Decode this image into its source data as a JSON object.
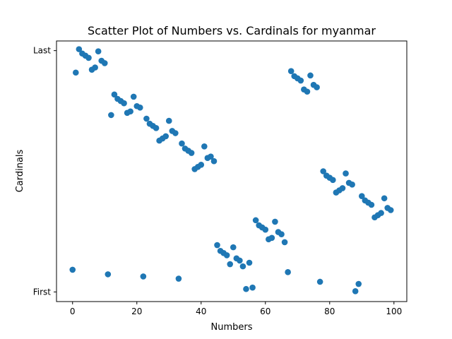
{
  "chart_data": {
    "type": "scatter",
    "title": "Scatter Plot of Numbers vs. Cardinals for myanmar",
    "xlabel": "Numbers",
    "ylabel": "Cardinals",
    "xlim": [
      -5,
      104
    ],
    "ylim": [
      -0.04,
      1.04
    ],
    "x_ticks": [
      0,
      20,
      40,
      60,
      80,
      100
    ],
    "y_ticks": [
      {
        "value": 0,
        "label": "First"
      },
      {
        "value": 1,
        "label": "Last"
      }
    ],
    "grid": false,
    "legend": "none",
    "marker_color": "#1f77b4",
    "points": [
      [
        0,
        0.092
      ],
      [
        1,
        0.909
      ],
      [
        2,
        1.006
      ],
      [
        3,
        0.988
      ],
      [
        4,
        0.979
      ],
      [
        5,
        0.97
      ],
      [
        6,
        0.921
      ],
      [
        7,
        0.93
      ],
      [
        8,
        0.997
      ],
      [
        9,
        0.958
      ],
      [
        10,
        0.948
      ],
      [
        11,
        0.073
      ],
      [
        12,
        0.733
      ],
      [
        13,
        0.818
      ],
      [
        14,
        0.8
      ],
      [
        15,
        0.791
      ],
      [
        16,
        0.782
      ],
      [
        17,
        0.742
      ],
      [
        18,
        0.748
      ],
      [
        19,
        0.809
      ],
      [
        20,
        0.77
      ],
      [
        21,
        0.764
      ],
      [
        22,
        0.064
      ],
      [
        23,
        0.718
      ],
      [
        24,
        0.697
      ],
      [
        25,
        0.688
      ],
      [
        26,
        0.679
      ],
      [
        27,
        0.627
      ],
      [
        28,
        0.636
      ],
      [
        29,
        0.645
      ],
      [
        30,
        0.709
      ],
      [
        31,
        0.667
      ],
      [
        32,
        0.658
      ],
      [
        33,
        0.055
      ],
      [
        34,
        0.615
      ],
      [
        35,
        0.594
      ],
      [
        36,
        0.585
      ],
      [
        37,
        0.576
      ],
      [
        38,
        0.509
      ],
      [
        39,
        0.518
      ],
      [
        40,
        0.527
      ],
      [
        41,
        0.603
      ],
      [
        42,
        0.555
      ],
      [
        43,
        0.561
      ],
      [
        44,
        0.542
      ],
      [
        45,
        0.194
      ],
      [
        46,
        0.17
      ],
      [
        47,
        0.161
      ],
      [
        48,
        0.152
      ],
      [
        49,
        0.115
      ],
      [
        50,
        0.185
      ],
      [
        51,
        0.139
      ],
      [
        52,
        0.13
      ],
      [
        53,
        0.106
      ],
      [
        54,
        0.012
      ],
      [
        55,
        0.121
      ],
      [
        56,
        0.018
      ],
      [
        57,
        0.297
      ],
      [
        58,
        0.276
      ],
      [
        59,
        0.267
      ],
      [
        60,
        0.258
      ],
      [
        61,
        0.218
      ],
      [
        62,
        0.224
      ],
      [
        63,
        0.291
      ],
      [
        64,
        0.248
      ],
      [
        65,
        0.239
      ],
      [
        66,
        0.206
      ],
      [
        67,
        0.082
      ],
      [
        68,
        0.915
      ],
      [
        69,
        0.894
      ],
      [
        70,
        0.885
      ],
      [
        71,
        0.876
      ],
      [
        72,
        0.839
      ],
      [
        73,
        0.83
      ],
      [
        74,
        0.897
      ],
      [
        75,
        0.858
      ],
      [
        76,
        0.848
      ],
      [
        77,
        0.042
      ],
      [
        78,
        0.5
      ],
      [
        79,
        0.482
      ],
      [
        80,
        0.473
      ],
      [
        81,
        0.464
      ],
      [
        82,
        0.412
      ],
      [
        83,
        0.421
      ],
      [
        84,
        0.43
      ],
      [
        85,
        0.491
      ],
      [
        86,
        0.452
      ],
      [
        87,
        0.445
      ],
      [
        88,
        0.003
      ],
      [
        89,
        0.033
      ],
      [
        90,
        0.397
      ],
      [
        91,
        0.379
      ],
      [
        92,
        0.37
      ],
      [
        93,
        0.361
      ],
      [
        94,
        0.309
      ],
      [
        95,
        0.318
      ],
      [
        96,
        0.327
      ],
      [
        97,
        0.388
      ],
      [
        98,
        0.348
      ],
      [
        99,
        0.339
      ]
    ]
  }
}
